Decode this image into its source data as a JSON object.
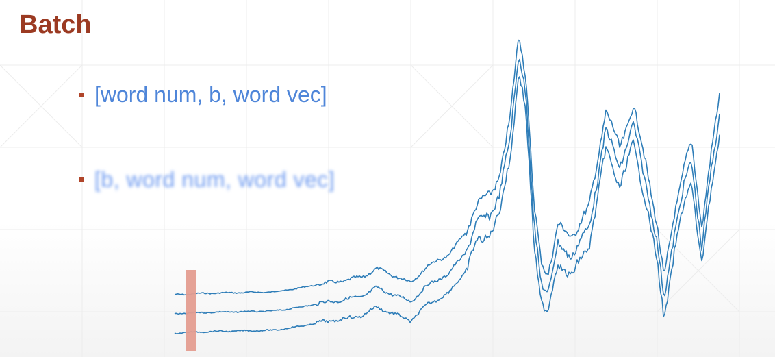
{
  "slide": {
    "title": "Batch",
    "bullets": [
      {
        "label": "[word num, b, word vec]"
      },
      {
        "label": "[b, word num, word vec]"
      }
    ],
    "colors": {
      "title": "#9b3a22",
      "bullet_text": "#4f86d9",
      "bullet_marker": "#b0452a",
      "wave_line": "#2e7db8",
      "highlight_bar": "#e49d90"
    }
  }
}
